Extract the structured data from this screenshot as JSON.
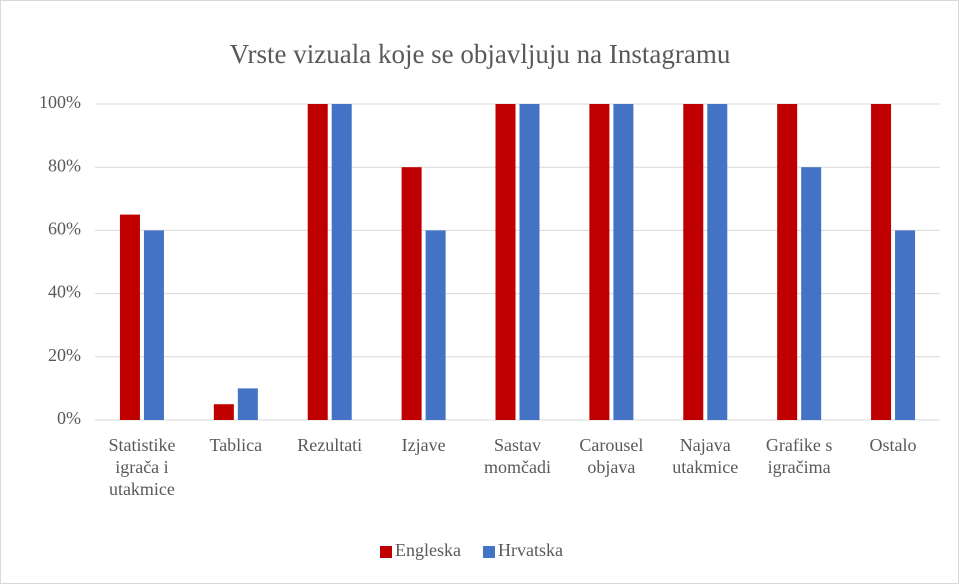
{
  "chart_data": {
    "type": "bar",
    "title": "Vrste vizuala koje se objavljuju na Instagramu",
    "categories": [
      "Statistike igrača i utakmice",
      "Tablica",
      "Rezultati",
      "Izjave",
      "Sastav momčadi",
      "Carousel objava",
      "Najava utakmice",
      "Grafike s igračima",
      "Ostalo"
    ],
    "series": [
      {
        "name": "Engleska",
        "color": "#c00000",
        "values": [
          65,
          5,
          100,
          80,
          100,
          100,
          100,
          100,
          100
        ]
      },
      {
        "name": "Hrvatska",
        "color": "#4472c4",
        "values": [
          60,
          10,
          100,
          60,
          100,
          100,
          100,
          80,
          60
        ]
      }
    ],
    "ylim": [
      0,
      100
    ],
    "yticks": [
      {
        "value": 0,
        "label": "0%"
      },
      {
        "value": 20,
        "label": "20%"
      },
      {
        "value": 40,
        "label": "40%"
      },
      {
        "value": 60,
        "label": "60%"
      },
      {
        "value": 80,
        "label": "80%"
      },
      {
        "value": 100,
        "label": "100%"
      }
    ],
    "grid": true,
    "legend": "bottom"
  }
}
